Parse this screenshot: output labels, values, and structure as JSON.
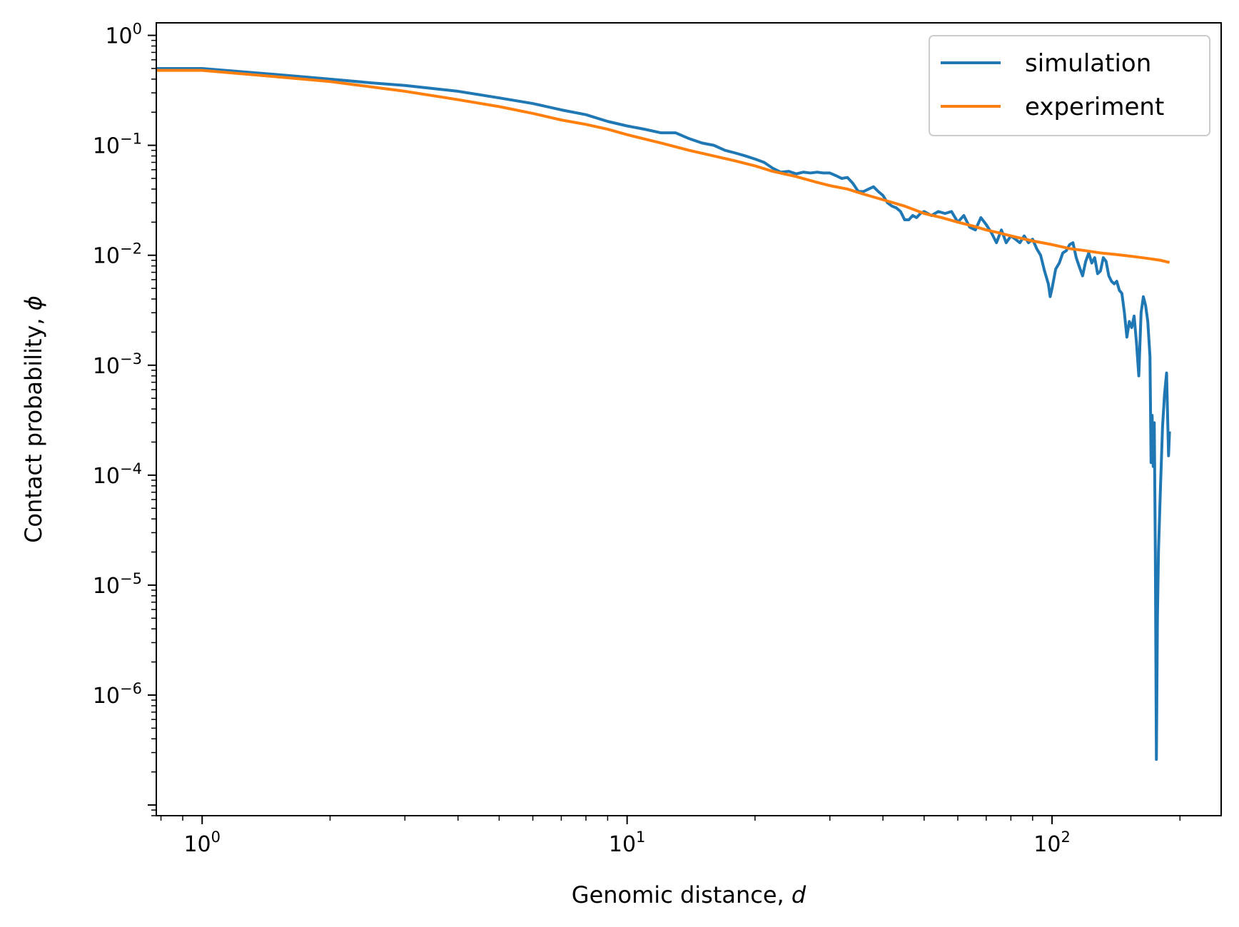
{
  "chart_data": {
    "type": "line",
    "xscale": "log",
    "yscale": "log",
    "xlim": [
      0.78,
      250
    ],
    "ylim": [
      8e-08,
      1.3
    ],
    "xticks": [
      {
        "base": "10",
        "exp": "0"
      },
      {
        "base": "10",
        "exp": "1"
      },
      {
        "base": "10",
        "exp": "2"
      }
    ],
    "yticks": [
      {
        "base": "10",
        "exp": "0"
      },
      {
        "base": "10",
        "exp": "−1"
      },
      {
        "base": "10",
        "exp": "−2"
      },
      {
        "base": "10",
        "exp": "−3"
      },
      {
        "base": "10",
        "exp": "−4"
      },
      {
        "base": "10",
        "exp": "−5"
      },
      {
        "base": "10",
        "exp": "−6"
      }
    ],
    "xlabel": {
      "text": "Genomic distance, ",
      "symbol": "d"
    },
    "ylabel": {
      "text": "Contact probability, ",
      "symbol": "ϕ"
    },
    "legend": {
      "position": "upper right"
    },
    "grid": false,
    "series": [
      {
        "name": "simulation",
        "color": "#1f77b4",
        "points": [
          [
            0.78,
            0.5
          ],
          [
            1,
            0.5
          ],
          [
            1.5,
            0.44
          ],
          [
            2,
            0.4
          ],
          [
            2.5,
            0.37
          ],
          [
            3,
            0.35
          ],
          [
            4,
            0.31
          ],
          [
            5,
            0.27
          ],
          [
            6,
            0.24
          ],
          [
            7,
            0.21
          ],
          [
            8,
            0.19
          ],
          [
            9,
            0.165
          ],
          [
            10,
            0.15
          ],
          [
            11,
            0.14
          ],
          [
            12,
            0.13
          ],
          [
            13,
            0.13
          ],
          [
            14,
            0.115
          ],
          [
            15,
            0.105
          ],
          [
            16,
            0.1
          ],
          [
            17,
            0.09
          ],
          [
            18,
            0.085
          ],
          [
            19,
            0.08
          ],
          [
            20,
            0.075
          ],
          [
            21,
            0.07
          ],
          [
            22,
            0.062
          ],
          [
            23,
            0.057
          ],
          [
            24,
            0.058
          ],
          [
            25,
            0.055
          ],
          [
            26,
            0.057
          ],
          [
            27,
            0.056
          ],
          [
            28,
            0.057
          ],
          [
            29,
            0.056
          ],
          [
            30,
            0.056
          ],
          [
            31,
            0.053
          ],
          [
            32,
            0.05
          ],
          [
            33,
            0.051
          ],
          [
            34,
            0.045
          ],
          [
            35,
            0.038
          ],
          [
            36,
            0.038
          ],
          [
            37,
            0.04
          ],
          [
            38,
            0.042
          ],
          [
            39,
            0.038
          ],
          [
            40,
            0.035
          ],
          [
            41,
            0.03
          ],
          [
            42,
            0.028
          ],
          [
            43,
            0.027
          ],
          [
            44,
            0.025
          ],
          [
            45,
            0.021
          ],
          [
            46,
            0.021
          ],
          [
            47,
            0.023
          ],
          [
            48,
            0.022
          ],
          [
            49,
            0.024
          ],
          [
            50,
            0.025
          ],
          [
            52,
            0.023
          ],
          [
            54,
            0.025
          ],
          [
            56,
            0.024
          ],
          [
            58,
            0.025
          ],
          [
            60,
            0.02
          ],
          [
            62,
            0.023
          ],
          [
            64,
            0.018
          ],
          [
            66,
            0.017
          ],
          [
            68,
            0.022
          ],
          [
            70,
            0.019
          ],
          [
            72,
            0.016
          ],
          [
            74,
            0.013
          ],
          [
            76,
            0.017
          ],
          [
            78,
            0.013
          ],
          [
            80,
            0.015
          ],
          [
            82,
            0.014
          ],
          [
            84,
            0.013
          ],
          [
            86,
            0.015
          ],
          [
            88,
            0.013
          ],
          [
            90,
            0.014
          ],
          [
            92,
            0.0115
          ],
          [
            94,
            0.01
          ],
          [
            96,
            0.0072
          ],
          [
            98,
            0.0055
          ],
          [
            99,
            0.0042
          ],
          [
            100,
            0.005
          ],
          [
            102,
            0.0075
          ],
          [
            104,
            0.0085
          ],
          [
            106,
            0.0105
          ],
          [
            108,
            0.011
          ],
          [
            110,
            0.0125
          ],
          [
            112,
            0.013
          ],
          [
            114,
            0.0095
          ],
          [
            116,
            0.0078
          ],
          [
            118,
            0.0065
          ],
          [
            120,
            0.0088
          ],
          [
            122,
            0.0105
          ],
          [
            124,
            0.0085
          ],
          [
            126,
            0.0095
          ],
          [
            128,
            0.0068
          ],
          [
            130,
            0.0072
          ],
          [
            132,
            0.0095
          ],
          [
            134,
            0.0088
          ],
          [
            136,
            0.0065
          ],
          [
            138,
            0.0058
          ],
          [
            140,
            0.0055
          ],
          [
            142,
            0.0058
          ],
          [
            144,
            0.0048
          ],
          [
            146,
            0.0045
          ],
          [
            148,
            0.003
          ],
          [
            150,
            0.0018
          ],
          [
            152,
            0.0025
          ],
          [
            154,
            0.0022
          ],
          [
            156,
            0.0028
          ],
          [
            158,
            0.0016
          ],
          [
            160,
            0.0008
          ],
          [
            162,
            0.003
          ],
          [
            164,
            0.0042
          ],
          [
            166,
            0.0035
          ],
          [
            168,
            0.0025
          ],
          [
            170,
            0.0012
          ],
          [
            171,
            0.00013
          ],
          [
            172,
            0.00035
          ],
          [
            173,
            0.00012
          ],
          [
            174,
            0.0003
          ],
          [
            175,
            2e-05
          ],
          [
            176,
            2.6e-07
          ],
          [
            177,
            5e-06
          ],
          [
            178,
            2e-05
          ],
          [
            180,
            8e-05
          ],
          [
            182,
            0.00028
          ],
          [
            184,
            0.00055
          ],
          [
            186,
            0.00085
          ],
          [
            188,
            0.00015
          ],
          [
            189,
            0.00025
          ]
        ]
      },
      {
        "name": "experiment",
        "color": "#ff7f0e",
        "points": [
          [
            0.78,
            0.48
          ],
          [
            1,
            0.48
          ],
          [
            1.5,
            0.42
          ],
          [
            2,
            0.38
          ],
          [
            2.5,
            0.34
          ],
          [
            3,
            0.31
          ],
          [
            4,
            0.26
          ],
          [
            5,
            0.225
          ],
          [
            6,
            0.195
          ],
          [
            7,
            0.17
          ],
          [
            8,
            0.155
          ],
          [
            9,
            0.14
          ],
          [
            10,
            0.125
          ],
          [
            12,
            0.105
          ],
          [
            14,
            0.09
          ],
          [
            16,
            0.08
          ],
          [
            18,
            0.072
          ],
          [
            20,
            0.065
          ],
          [
            22,
            0.058
          ],
          [
            25,
            0.052
          ],
          [
            28,
            0.046
          ],
          [
            30,
            0.043
          ],
          [
            33,
            0.04
          ],
          [
            36,
            0.036
          ],
          [
            40,
            0.032
          ],
          [
            45,
            0.028
          ],
          [
            50,
            0.024
          ],
          [
            55,
            0.022
          ],
          [
            60,
            0.02
          ],
          [
            65,
            0.0185
          ],
          [
            70,
            0.017
          ],
          [
            75,
            0.016
          ],
          [
            80,
            0.015
          ],
          [
            90,
            0.0135
          ],
          [
            100,
            0.0125
          ],
          [
            110,
            0.0115
          ],
          [
            120,
            0.011
          ],
          [
            130,
            0.0105
          ],
          [
            140,
            0.0102
          ],
          [
            150,
            0.0099
          ],
          [
            160,
            0.0096
          ],
          [
            170,
            0.0093
          ],
          [
            180,
            0.009
          ],
          [
            189,
            0.0086
          ]
        ]
      }
    ]
  }
}
